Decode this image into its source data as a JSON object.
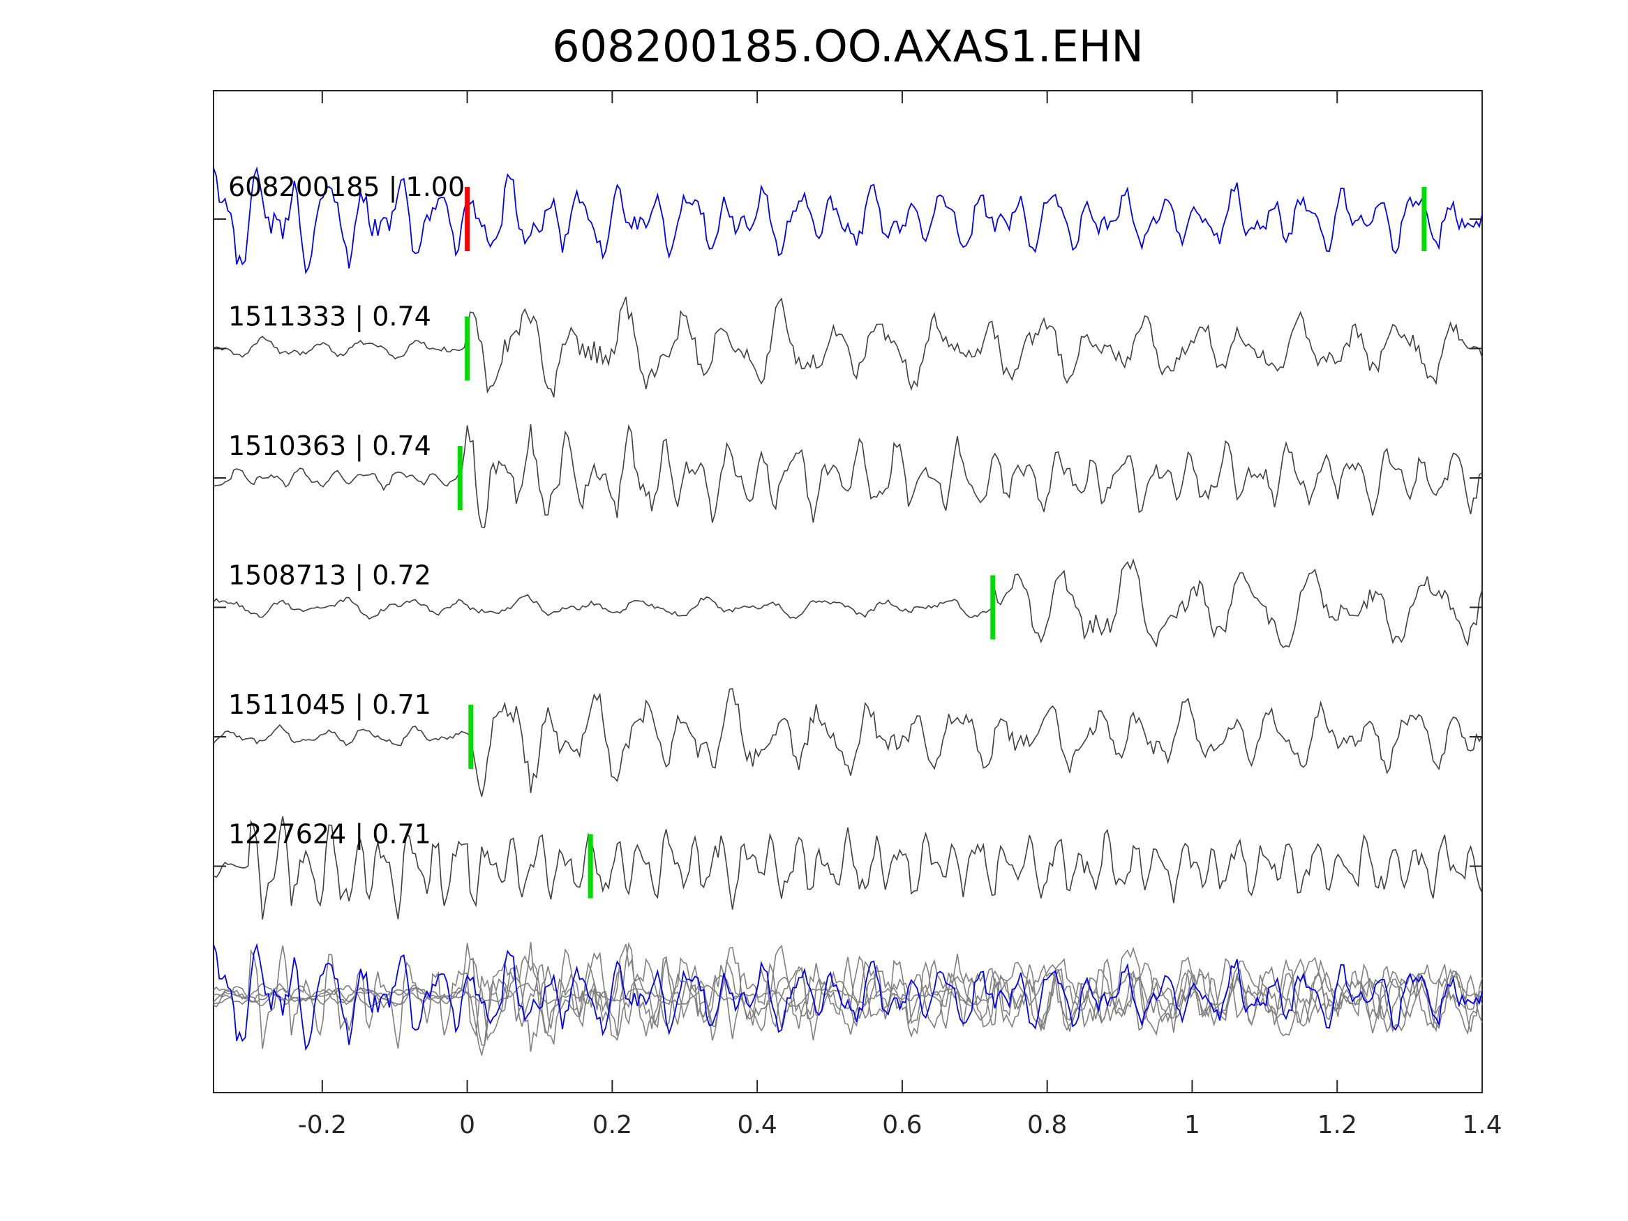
{
  "chart_data": {
    "type": "line",
    "title": "608200185.OO.AXAS1.EHN",
    "xlabel": "",
    "ylabel": "",
    "xlim": [
      -0.35,
      1.4
    ],
    "xticks": [
      "-0.2",
      "0",
      "0.2",
      "0.4",
      "0.6",
      "0.8",
      "1",
      "1.2",
      "1.4"
    ],
    "xtick_values": [
      -0.2,
      0,
      0.2,
      0.4,
      0.6,
      0.8,
      1,
      1.2,
      1.4
    ],
    "grid": false,
    "traces": [
      {
        "label": "608200185 | 1.00",
        "color": "#0000ff",
        "picks": [
          {
            "t": 0.0,
            "color": "#ff0000"
          },
          {
            "t": 1.32,
            "color": "#00dd00"
          }
        ],
        "seed": 11,
        "freq": 20,
        "onset": -0.35,
        "amp": 1.0
      },
      {
        "label": "1511333 | 0.74",
        "color": "#404040",
        "picks": [
          {
            "t": 0.0,
            "color": "#00dd00"
          }
        ],
        "seed": 23,
        "freq": 14,
        "onset": 0.0,
        "amp": 1.0
      },
      {
        "label": "1510363 | 0.74",
        "color": "#404040",
        "picks": [
          {
            "t": -0.01,
            "color": "#00dd00"
          }
        ],
        "seed": 37,
        "freq": 22,
        "onset": -0.01,
        "amp": 1.0
      },
      {
        "label": "1508713 | 0.72",
        "color": "#404040",
        "picks": [
          {
            "t": 0.725,
            "color": "#00dd00"
          }
        ],
        "seed": 41,
        "freq": 12,
        "onset": 0.725,
        "amp": 1.0
      },
      {
        "label": "1511045 | 0.71",
        "color": "#404040",
        "picks": [
          {
            "t": 0.005,
            "color": "#00dd00"
          }
        ],
        "seed": 53,
        "freq": 16,
        "onset": 0.005,
        "amp": 1.0
      },
      {
        "label": "1227624 | 0.71",
        "color": "#404040",
        "picks": [
          {
            "t": 0.17,
            "color": "#00dd00"
          }
        ],
        "seed": 67,
        "freq": 28,
        "onset": -0.3,
        "amp": 1.0
      }
    ],
    "stack_color": "#808080"
  }
}
